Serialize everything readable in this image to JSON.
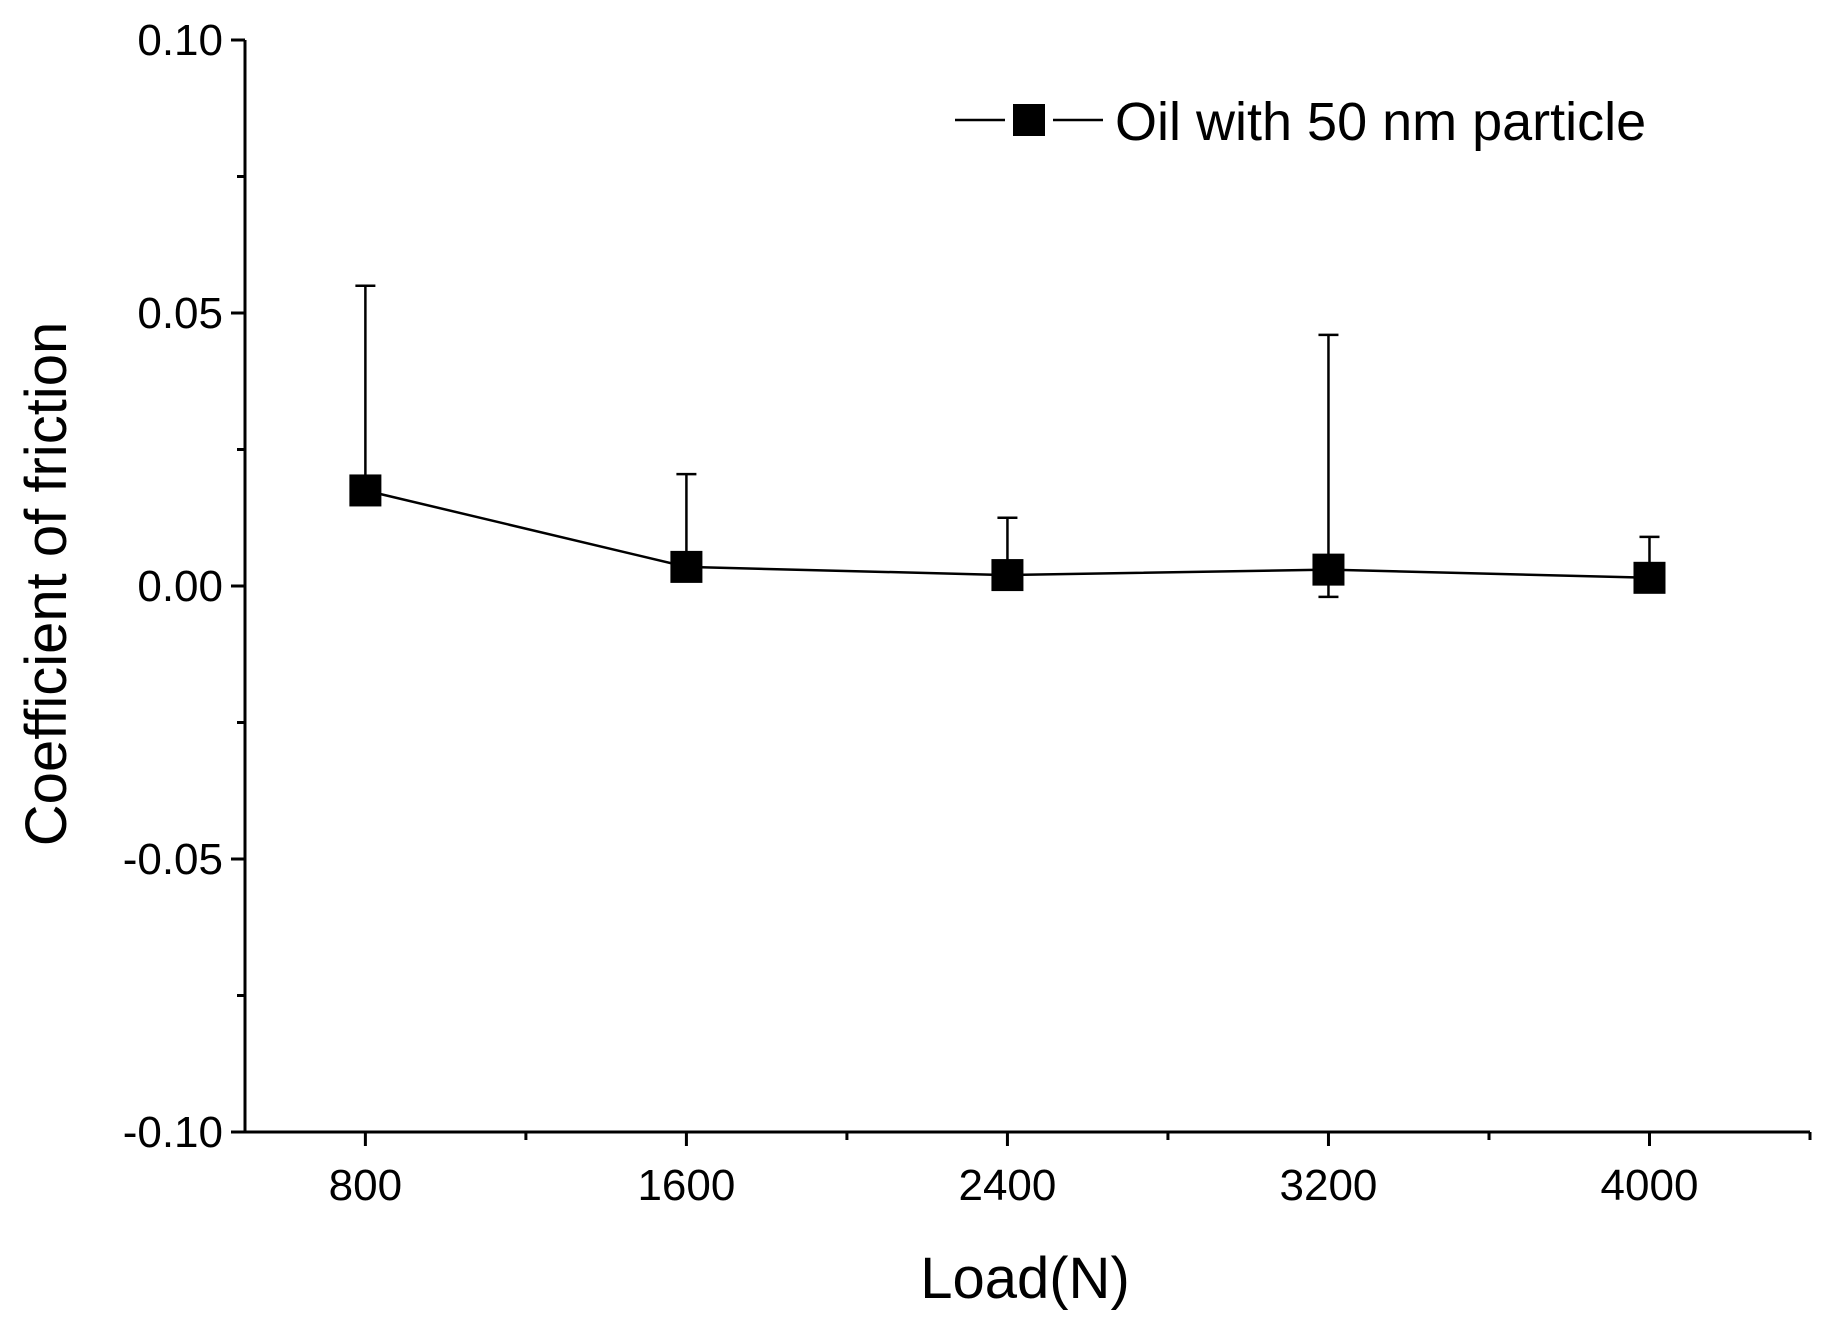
{
  "chart_data": {
    "type": "line",
    "title": "",
    "xlabel": "Load(N)",
    "ylabel": "Coefficient of friction",
    "categories": [
      "800",
      "1600",
      "2400",
      "3200",
      "4000"
    ],
    "x": [
      800,
      1600,
      2400,
      3200,
      4000
    ],
    "xlim": [
      500,
      4400
    ],
    "ylim": [
      -0.1,
      0.1
    ],
    "yticks": [
      -0.1,
      -0.05,
      0.0,
      0.05,
      0.1
    ],
    "ytick_labels": [
      "-0.10",
      "-0.05",
      "0.00",
      "0.05",
      "0.10"
    ],
    "series": [
      {
        "name": "Oil with 50 nm particle",
        "marker": "square",
        "color": "#000000",
        "values": [
          0.0175,
          0.0035,
          0.002,
          0.003,
          0.0015
        ],
        "error_plus": [
          0.0375,
          0.017,
          0.0105,
          0.043,
          0.0075
        ],
        "error_minus": [
          0.0,
          0.0,
          0.0,
          0.005,
          0.0
        ]
      }
    ],
    "legend": {
      "position": "top-right"
    },
    "grid": false
  }
}
